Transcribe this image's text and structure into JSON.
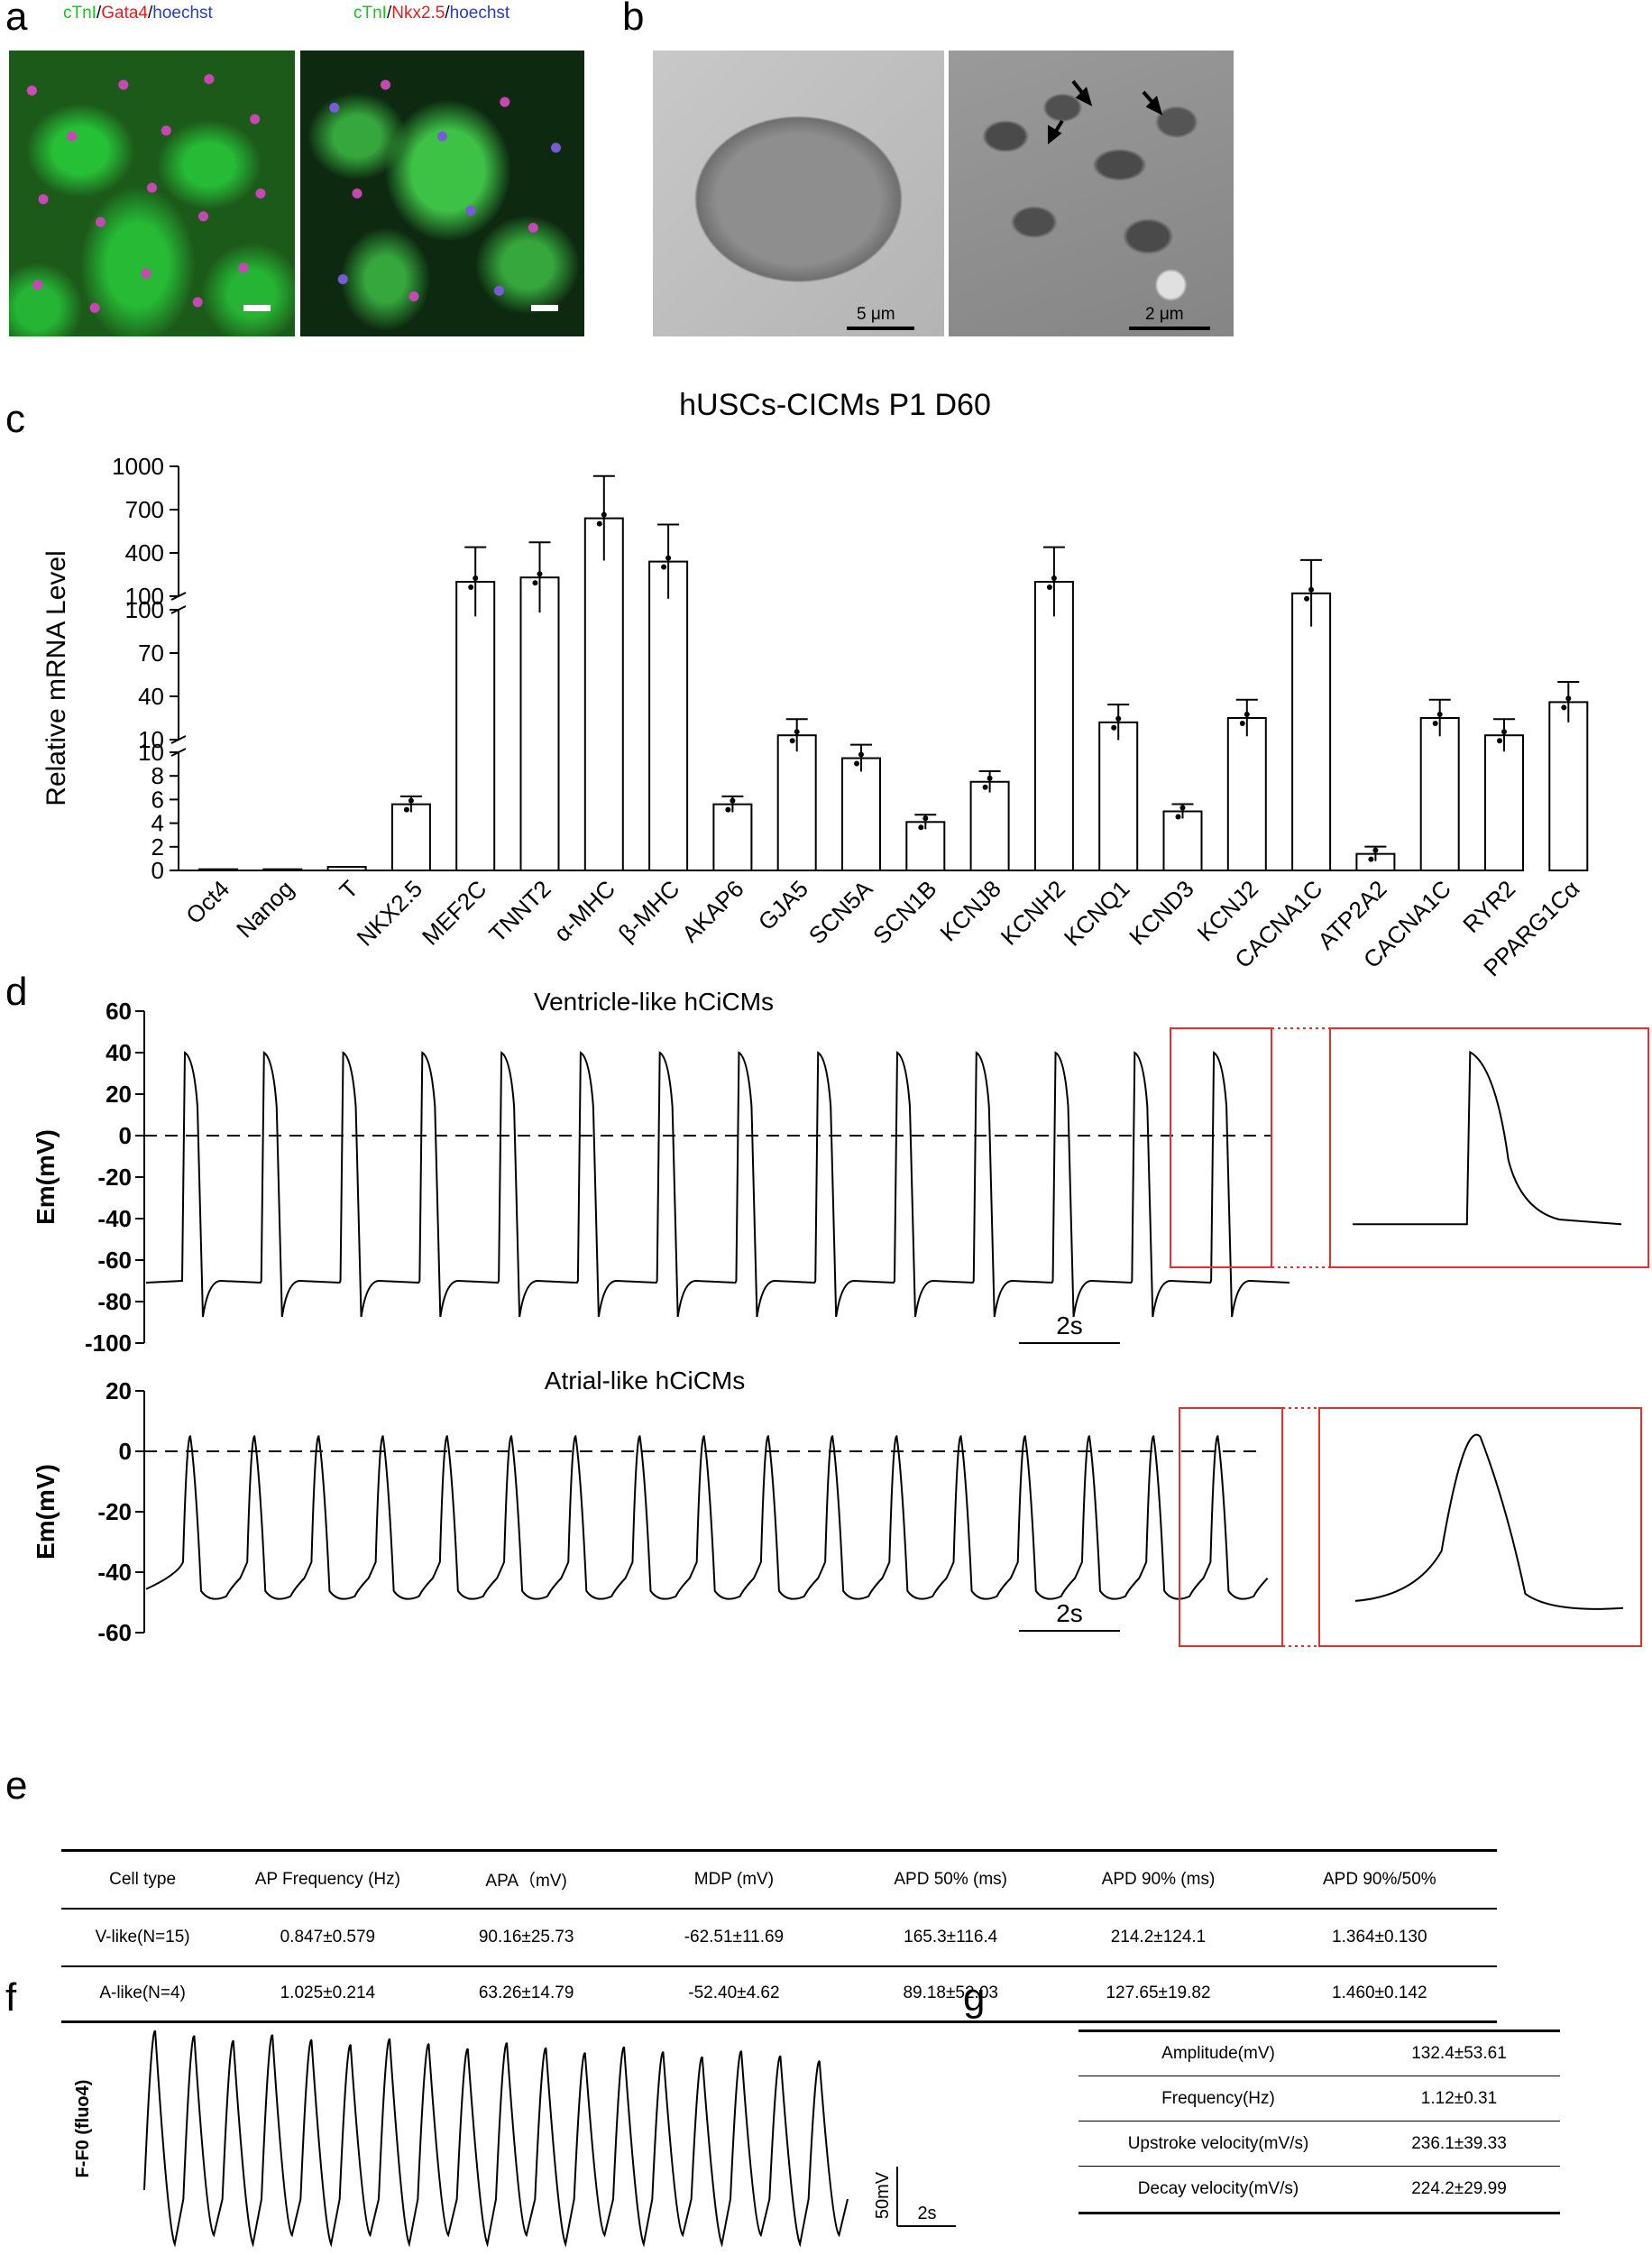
{
  "panels": {
    "a": "a",
    "b": "b",
    "c": "c",
    "d": "d",
    "e": "e",
    "f": "f",
    "g": "g"
  },
  "panel_a": {
    "img1_label": [
      {
        "text": "cTnI",
        "color": "#19c41c"
      },
      {
        "text": "/",
        "color": "#000000"
      },
      {
        "text": "Gata4",
        "color": "#e02020"
      },
      {
        "text": "/",
        "color": "#000000"
      },
      {
        "text": "hoechst",
        "color": "#2a3fb8"
      }
    ],
    "img2_label": [
      {
        "text": "cTnI",
        "color": "#19c41c"
      },
      {
        "text": "/",
        "color": "#000000"
      },
      {
        "text": "Nkx2.5",
        "color": "#e02020"
      },
      {
        "text": "/",
        "color": "#000000"
      },
      {
        "text": "hoechst",
        "color": "#2a3fb8"
      }
    ]
  },
  "panel_b": {
    "scale1": "5 μm",
    "scale2": "2 μm"
  },
  "chart_data": [
    {
      "type": "bar",
      "title": "hUSCs-CICMs P1 D60",
      "ylabel": "Relative mRNA Level",
      "yaxis_segments": [
        {
          "range": [
            0,
            10
          ],
          "ticks": [
            "0",
            "2",
            "4",
            "6",
            "8",
            "10"
          ]
        },
        {
          "range": [
            10,
            100
          ],
          "ticks": [
            "10",
            "40",
            "70",
            "100"
          ]
        },
        {
          "range": [
            100,
            1000
          ],
          "ticks": [
            "100",
            "400",
            "700",
            "1000"
          ]
        }
      ],
      "categories": [
        "Oct4",
        "Nanog",
        "T",
        "NKX2.5",
        "MEF2C",
        "TNNT2",
        "α-MHC",
        "β-MHC",
        "AKAP6",
        "GJA5",
        "SCN5A",
        "SCN1B",
        "KCNJ8",
        "KCNH2",
        "KCNQ1",
        "KCND3",
        "KCNJ2",
        "CACNA1C",
        "ATP2A2",
        "CACNA1C",
        "RYR2",
        "PPARG1Cα"
      ],
      "values": [
        0.1,
        0.1,
        0.3,
        5.6,
        200,
        230,
        640,
        340,
        5.6,
        13,
        9.5,
        4.1,
        7.5,
        200,
        22,
        5.0,
        25,
        120,
        1.4,
        25,
        13,
        36
      ]
    },
    {
      "type": "line",
      "title": "Ventricle-like hCiCMs",
      "ylabel": "Em(mV)",
      "yticks": [
        "60",
        "40",
        "20",
        "0",
        "-20",
        "-40",
        "-60",
        "-80",
        "-100"
      ],
      "ylim": [
        -100,
        60
      ],
      "peak_mV": 40,
      "rest_mV": -70,
      "beats": 14,
      "scale_label": "2s"
    },
    {
      "type": "line",
      "title": "Atrial-like hCiCMs",
      "ylabel": "Em(mV)",
      "yticks": [
        "20",
        "0",
        "-20",
        "-40",
        "-60"
      ],
      "ylim": [
        -60,
        20
      ],
      "peak_mV": 5,
      "rest_mV": -45,
      "beats": 17,
      "scale_label": "2s"
    },
    {
      "type": "line",
      "ylabel": "F-F0 (fluo4)",
      "beats": 18,
      "scale_y_label": "50mV",
      "scale_x_label": "2s"
    }
  ],
  "table_e": {
    "headers": [
      "Cell type",
      "AP Frequency (Hz)",
      "APA（mV)",
      "MDP (mV)",
      "APD 50% (ms)",
      "APD 90% (ms)",
      "APD 90%/50%"
    ],
    "rows": [
      [
        "V-like(N=15)",
        "0.847±0.579",
        "90.16±25.73",
        "-62.51±11.69",
        "165.3±116.4",
        "214.2±124.1",
        "1.364±0.130"
      ],
      [
        "A-like(N=4)",
        "1.025±0.214",
        "63.26±14.79",
        "-52.40±4.62",
        "89.18±52.03",
        "127.65±19.82",
        "1.460±0.142"
      ]
    ]
  },
  "table_g": {
    "rows": [
      [
        "Amplitude(mV)",
        "132.4±53.61"
      ],
      [
        "Frequency(Hz)",
        "1.12±0.31"
      ],
      [
        "Upstroke velocity(mV/s)",
        "236.1±39.33"
      ],
      [
        "Decay velocity(mV/s)",
        "224.2±29.99"
      ]
    ]
  }
}
